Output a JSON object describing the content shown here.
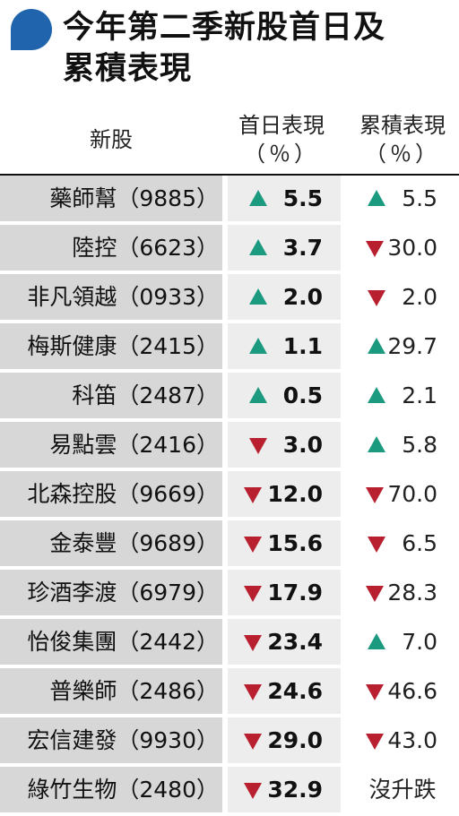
{
  "title": {
    "line1": "今年第二季新股首日及",
    "line2": "累積表現"
  },
  "headers": {
    "name": "新股",
    "first_day": "首日表現",
    "first_day_unit": "（％）",
    "cumulative": "累積表現",
    "cumulative_unit": "（％）"
  },
  "colors": {
    "up": "#1b9a80",
    "down": "#b81f2f",
    "accent": "#1f64ad"
  },
  "rows": [
    {
      "name": "藥師幫（9885）",
      "first_dir": "up",
      "first": "5.5",
      "cum_dir": "up",
      "cum": "5.5"
    },
    {
      "name": "陸控（6623）",
      "first_dir": "up",
      "first": "3.7",
      "cum_dir": "down",
      "cum": "30.0"
    },
    {
      "name": "非凡領越（0933）",
      "first_dir": "up",
      "first": "2.0",
      "cum_dir": "down",
      "cum": "2.0"
    },
    {
      "name": "梅斯健康（2415）",
      "first_dir": "up",
      "first": "1.1",
      "cum_dir": "up",
      "cum": "29.7"
    },
    {
      "name": "科笛（2487）",
      "first_dir": "up",
      "first": "0.5",
      "cum_dir": "up",
      "cum": "2.1"
    },
    {
      "name": "易點雲（2416）",
      "first_dir": "down",
      "first": "3.0",
      "cum_dir": "up",
      "cum": "5.8"
    },
    {
      "name": "北森控股（9669）",
      "first_dir": "down",
      "first": "12.0",
      "cum_dir": "down",
      "cum": "70.0"
    },
    {
      "name": "金泰豐（9689）",
      "first_dir": "down",
      "first": "15.6",
      "cum_dir": "down",
      "cum": "6.5"
    },
    {
      "name": "珍酒李渡（6979）",
      "first_dir": "down",
      "first": "17.9",
      "cum_dir": "down",
      "cum": "28.3"
    },
    {
      "name": "怡俊集團（2442）",
      "first_dir": "down",
      "first": "23.4",
      "cum_dir": "up",
      "cum": "7.0"
    },
    {
      "name": "普樂師（2486）",
      "first_dir": "down",
      "first": "24.6",
      "cum_dir": "down",
      "cum": "46.6"
    },
    {
      "name": "宏信建發（9930）",
      "first_dir": "down",
      "first": "29.0",
      "cum_dir": "down",
      "cum": "43.0"
    },
    {
      "name": "綠竹生物（2480）",
      "first_dir": "down",
      "first": "32.9",
      "cum_dir": "none",
      "cum": "沒升跌"
    }
  ]
}
